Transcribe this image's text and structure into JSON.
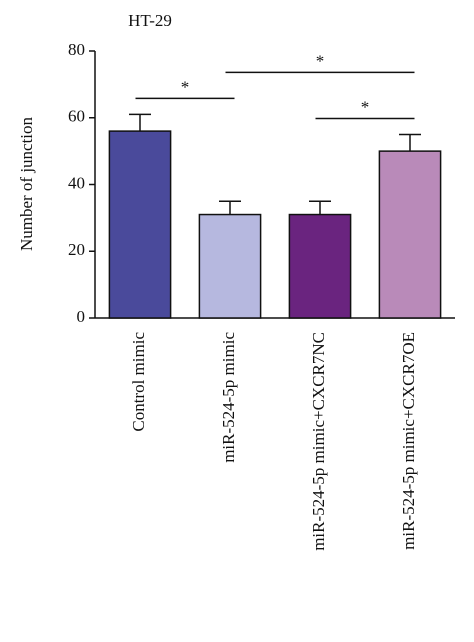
{
  "chart_data": {
    "type": "bar",
    "title": "HT-29",
    "y_label": "Number of junction",
    "categories": [
      "Control mimic",
      "miR-524-5p mimic",
      "miR-524-5p mimic+CXCR7NC",
      "miR-524-5p mimic+CXCR7OE"
    ],
    "values": [
      56,
      31,
      31,
      50
    ],
    "errors": [
      5,
      4,
      4,
      5
    ],
    "colors": [
      "#4a4a9b",
      "#b6b8df",
      "#6a247f",
      "#b98ab9"
    ],
    "ylim": [
      0,
      80
    ],
    "yticks": [
      0,
      20,
      40,
      60,
      80
    ],
    "significance": [
      {
        "pair": [
          0,
          1
        ],
        "label": "*"
      },
      {
        "pair": [
          2,
          3
        ],
        "label": "*"
      },
      {
        "pair": [
          1,
          3
        ],
        "label": "*"
      }
    ]
  }
}
